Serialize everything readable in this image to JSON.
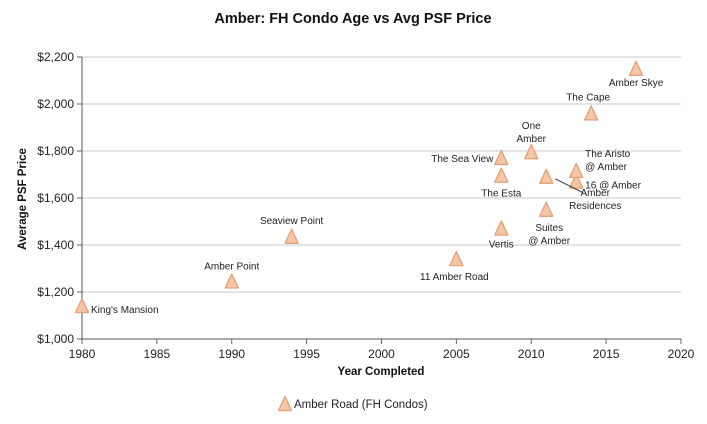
{
  "chart_data": {
    "type": "scatter",
    "title": "Amber: FH Condo Age vs Avg PSF Price",
    "xlabel": "Year Completed",
    "ylabel": "Average PSF Price",
    "xlim": [
      1980,
      2020
    ],
    "ylim": [
      1000,
      2200
    ],
    "x_ticks": [
      "1980",
      "1985",
      "1990",
      "1995",
      "2000",
      "2005",
      "2010",
      "2015",
      "2020"
    ],
    "y_ticks": [
      "$1,000",
      "$1,200",
      "$1,400",
      "$1,600",
      "$1,800",
      "$2,000",
      "$2,200"
    ],
    "grid": "horizontal",
    "legend": "bottom",
    "marker": "triangle",
    "marker_color": "#f6c7a6",
    "marker_edge_color": "#e3a37c",
    "series": [
      {
        "name": "Amber Road (FH Condos)",
        "points": [
          {
            "x": 1980,
            "y": 1140,
            "label": "King's Mansion"
          },
          {
            "x": 1990,
            "y": 1245,
            "label": "Amber Point"
          },
          {
            "x": 1994,
            "y": 1435,
            "label": "Seaview Point"
          },
          {
            "x": 2005,
            "y": 1340,
            "label": "11 Amber Road"
          },
          {
            "x": 2008,
            "y": 1470,
            "label": "Vertis"
          },
          {
            "x": 2008,
            "y": 1695,
            "label": "The Esta"
          },
          {
            "x": 2008,
            "y": 1770,
            "label": "The Sea View"
          },
          {
            "x": 2010,
            "y": 1795,
            "label": "One Amber"
          },
          {
            "x": 2011,
            "y": 1550,
            "label": "Suites @ Amber"
          },
          {
            "x": 2011,
            "y": 1690,
            "label": "Amber Residences"
          },
          {
            "x": 2013,
            "y": 1670,
            "label": "16 @ Amber"
          },
          {
            "x": 2013,
            "y": 1715,
            "label": "The Aristo @ Amber"
          },
          {
            "x": 2014,
            "y": 1960,
            "label": "The Cape"
          },
          {
            "x": 2017,
            "y": 2150,
            "label": "Amber Skye"
          }
        ]
      }
    ]
  }
}
